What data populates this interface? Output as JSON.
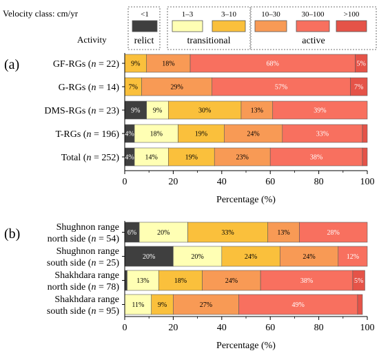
{
  "legend": {
    "velocity_title": "Velocity class: cm/yr",
    "activity_title": "Activity",
    "classes": [
      {
        "label": "<1",
        "color": "#3f3f3f"
      },
      {
        "label": "1–3",
        "color": "#ffffb4"
      },
      {
        "label": "3–10",
        "color": "#fac03c"
      },
      {
        "label": "10–30",
        "color": "#f89a55"
      },
      {
        "label": "30–100",
        "color": "#f8705f"
      },
      {
        "label": ">100",
        "color": "#e55348"
      }
    ],
    "activity_groups": [
      {
        "label": "relict",
        "classes": [
          0
        ]
      },
      {
        "label": "transitional",
        "classes": [
          1,
          2
        ]
      },
      {
        "label": "active",
        "classes": [
          3,
          4,
          5
        ]
      }
    ]
  },
  "chart_data": [
    {
      "type": "bar",
      "orientation": "horizontal",
      "stacked": true,
      "panel_label": "(a)",
      "xlabel": "Percentage (%)",
      "xlim": [
        0,
        100
      ],
      "xticks": [
        0,
        20,
        40,
        60,
        80,
        100
      ],
      "categories": [
        {
          "lines": [
            [
              {
                "t": "GF-RGs ("
              },
              {
                "t": "n",
                "i": true
              },
              {
                "t": " = 22)"
              }
            ]
          ]
        },
        {
          "lines": [
            [
              {
                "t": "G-RGs ("
              },
              {
                "t": "n",
                "i": true
              },
              {
                "t": " = 14)"
              }
            ]
          ]
        },
        {
          "lines": [
            [
              {
                "t": "DMS-RGs ("
              },
              {
                "t": "n",
                "i": true
              },
              {
                "t": " = 23)"
              }
            ]
          ]
        },
        {
          "lines": [
            [
              {
                "t": "T-RGs ("
              },
              {
                "t": "n",
                "i": true
              },
              {
                "t": " = 196)"
              }
            ]
          ]
        },
        {
          "lines": [
            [
              {
                "t": "Total ("
              },
              {
                "t": "n",
                "i": true
              },
              {
                "t": " = 252)"
              }
            ]
          ]
        }
      ],
      "bars": [
        {
          "values": [
            0,
            0,
            9,
            18,
            68,
            5
          ],
          "labels": [
            "",
            "",
            "9%",
            "18%",
            "68%",
            "5%"
          ]
        },
        {
          "values": [
            0,
            0,
            7,
            29,
            57,
            7
          ],
          "labels": [
            "",
            "",
            "7%",
            "29%",
            "57%",
            "7%"
          ]
        },
        {
          "values": [
            9,
            9,
            30,
            13,
            39,
            0
          ],
          "labels": [
            "9%",
            "9%",
            "30%",
            "13%",
            "39%",
            ""
          ]
        },
        {
          "values": [
            4,
            18,
            19,
            24,
            33,
            2
          ],
          "labels": [
            "4%",
            "18%",
            "19%",
            "24%",
            "33%",
            ""
          ]
        },
        {
          "values": [
            4,
            14,
            19,
            23,
            38,
            2
          ],
          "labels": [
            "4%",
            "14%",
            "19%",
            "23%",
            "38%",
            ""
          ]
        }
      ]
    },
    {
      "type": "bar",
      "orientation": "horizontal",
      "stacked": true,
      "panel_label": "(b)",
      "xlabel": "Percentage (%)",
      "xlim": [
        0,
        100
      ],
      "xticks": [
        0,
        20,
        40,
        60,
        80,
        100
      ],
      "categories": [
        {
          "lines": [
            [
              {
                "t": "Shughnon range"
              }
            ],
            [
              {
                "t": "north side ("
              },
              {
                "t": "n",
                "i": true
              },
              {
                "t": " = 54)"
              }
            ]
          ]
        },
        {
          "lines": [
            [
              {
                "t": "Shughnon range"
              }
            ],
            [
              {
                "t": "south side ("
              },
              {
                "t": "n",
                "i": true
              },
              {
                "t": " = 25)"
              }
            ]
          ]
        },
        {
          "lines": [
            [
              {
                "t": "Shakhdara range"
              }
            ],
            [
              {
                "t": "north side ("
              },
              {
                "t": "n",
                "i": true
              },
              {
                "t": " = 78)"
              }
            ]
          ]
        },
        {
          "lines": [
            [
              {
                "t": "Shakhdara range"
              }
            ],
            [
              {
                "t": "south side ("
              },
              {
                "t": "n",
                "i": true
              },
              {
                "t": " = 95)"
              }
            ]
          ]
        }
      ],
      "bars": [
        {
          "values": [
            6,
            20,
            33,
            13,
            28,
            0
          ],
          "labels": [
            "6%",
            "20%",
            "33%",
            "13%",
            "28%",
            ""
          ]
        },
        {
          "values": [
            20,
            20,
            24,
            24,
            12,
            0
          ],
          "labels": [
            "20%",
            "20%",
            "24%",
            "24%",
            "12%",
            ""
          ]
        },
        {
          "values": [
            1,
            13,
            18,
            24,
            38,
            5
          ],
          "labels": [
            "",
            "13%",
            "18%",
            "24%",
            "38%",
            "5%"
          ]
        },
        {
          "values": [
            0,
            11,
            9,
            27,
            49,
            2
          ],
          "labels": [
            "",
            "11%",
            "9%",
            "27%",
            "49%",
            ""
          ]
        }
      ]
    }
  ]
}
